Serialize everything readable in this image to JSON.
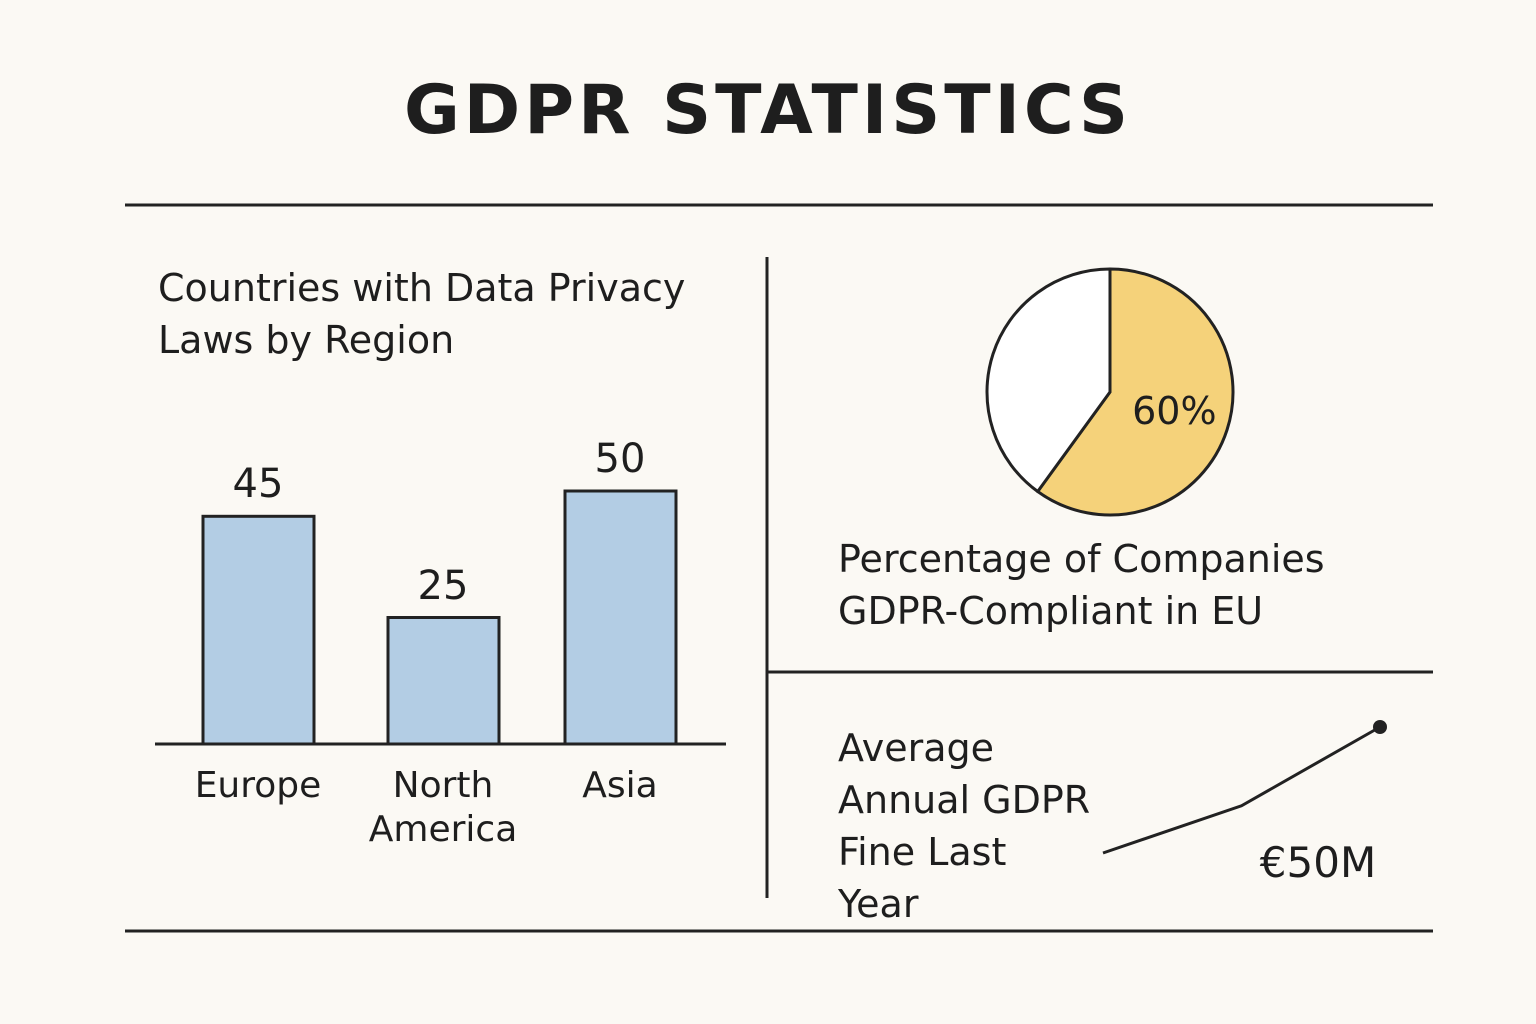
{
  "title": "GDPR STATISTICS",
  "chart_data": [
    {
      "type": "bar",
      "title": "Countries with Data Privacy Laws by Region",
      "categories": [
        "Europe",
        "North America",
        "Asia"
      ],
      "values": [
        45,
        25,
        50
      ],
      "color": "#b3cde4"
    },
    {
      "type": "pie",
      "title": "Percentage of Companies GDPR-Compliant in EU",
      "values": [
        60,
        40
      ],
      "value_labels": [
        "60%",
        null
      ],
      "colors": [
        "#f5d27a",
        "#ffffff"
      ]
    },
    {
      "type": "line",
      "title": "Average Annual GDPR Fine Last Year",
      "values": [
        18,
        30,
        50
      ],
      "value_labels": [
        null,
        null,
        "€50M"
      ],
      "color": "#222222"
    }
  ]
}
